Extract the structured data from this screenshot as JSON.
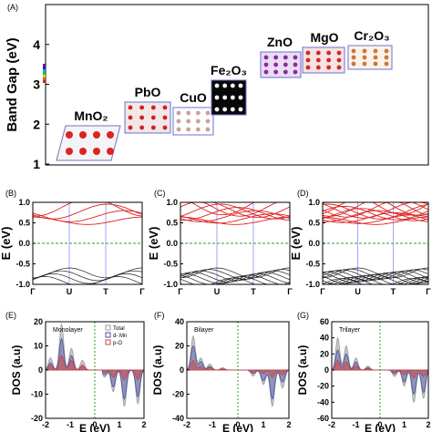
{
  "panel_labels": {
    "a": "(A)",
    "b": "(B)",
    "c": "(C)",
    "d": "(D)",
    "e": "(E)",
    "f": "(F)",
    "g": "(G)"
  },
  "colors": {
    "conduction": "#dd2222",
    "valence": "#222222",
    "fermi": "#2e9e2e",
    "kpath_line": "#8080ff",
    "dos_total": "#9a9a9a",
    "dos_mn": "#4a55a8",
    "dos_o": "#d04040"
  },
  "chart_data": [
    {
      "id": "bandgap",
      "type": "scatter",
      "title": "",
      "ylabel": "Band Gap (eV)",
      "xlabel": "",
      "ylim": [
        1,
        5
      ],
      "yticks": [
        "1",
        "2",
        "3",
        "4"
      ],
      "points": [
        {
          "label": "MnO₂",
          "y": 1.3
        },
        {
          "label": "PbO",
          "y": 1.9
        },
        {
          "label": "CuO",
          "y": 2.0
        },
        {
          "label": "Fe₂O₃",
          "y": 2.3
        },
        {
          "label": "ZnO",
          "y": 3.35
        },
        {
          "label": "MgO",
          "y": 3.6
        },
        {
          "label": "Cr₂O₃",
          "y": 3.6
        }
      ]
    },
    {
      "id": "bands_b",
      "type": "line",
      "ylabel": "E (eV)",
      "xticks": [
        "Γ",
        "U",
        "T",
        "Γ"
      ],
      "ylim": [
        -1,
        1
      ],
      "yticks": [
        "-1.0",
        "-0.5",
        "0.0",
        "0.5",
        "1.0"
      ],
      "layers": 1
    },
    {
      "id": "bands_c",
      "type": "line",
      "ylabel": "E (eV)",
      "xticks": [
        "Γ",
        "U",
        "T",
        "Γ"
      ],
      "ylim": [
        -1,
        1
      ],
      "yticks": [
        "-1.0",
        "-0.5",
        "0.0",
        "0.5",
        "1.0"
      ],
      "layers": 2
    },
    {
      "id": "bands_d",
      "type": "line",
      "ylabel": "E (eV)",
      "xticks": [
        "Γ",
        "U",
        "T",
        "Γ"
      ],
      "ylim": [
        -1,
        1
      ],
      "yticks": [
        "-1.0",
        "-0.5",
        "0.0",
        "0.5",
        "1.0"
      ],
      "layers": 3
    },
    {
      "id": "dos_e",
      "type": "area",
      "annotation": "Monolayer",
      "ylabel": "DOS (a.u)",
      "xlabel": "E (eV)",
      "xlim": [
        -2,
        2
      ],
      "xticks": [
        "-2",
        "-1",
        "0",
        "1",
        "2"
      ],
      "ylim": [
        -20,
        20
      ],
      "yticks": [
        "-20",
        "-10",
        "0",
        "10",
        "20"
      ],
      "legend": [
        "Total",
        "d- Mn",
        "p-O"
      ],
      "series": [
        {
          "name": "Total",
          "peaks": [
            [
              -1.8,
              5
            ],
            [
              -1.35,
              19
            ],
            [
              -0.95,
              9
            ],
            [
              -0.5,
              4
            ],
            [
              0.4,
              -3
            ],
            [
              0.75,
              -9
            ],
            [
              1.2,
              -15
            ],
            [
              1.75,
              -14
            ]
          ]
        },
        {
          "name": "d- Mn",
          "peaks": [
            [
              -1.8,
              3
            ],
            [
              -1.35,
              13
            ],
            [
              -0.95,
              6
            ],
            [
              -0.5,
              2
            ],
            [
              0.4,
              -2
            ],
            [
              0.75,
              -7
            ],
            [
              1.2,
              -12
            ],
            [
              1.75,
              -11
            ]
          ]
        },
        {
          "name": "p-O",
          "peaks": [
            [
              -1.8,
              2
            ],
            [
              -1.35,
              6
            ],
            [
              -0.95,
              4
            ],
            [
              -0.5,
              2
            ],
            [
              0.4,
              -1
            ],
            [
              0.75,
              -3
            ],
            [
              1.2,
              -4
            ],
            [
              1.75,
              -4
            ]
          ]
        }
      ]
    },
    {
      "id": "dos_f",
      "type": "area",
      "annotation": "Bilayer",
      "ylabel": "DOS (a.u)",
      "xlabel": "E (eV)",
      "xlim": [
        -2,
        2
      ],
      "xticks": [
        "-2",
        "-1",
        "0",
        "1",
        "2"
      ],
      "ylim": [
        -40,
        40
      ],
      "yticks": [
        "-40",
        "-20",
        "0",
        "20",
        "40"
      ],
      "series": [
        {
          "name": "Total",
          "peaks": [
            [
              -1.75,
              28
            ],
            [
              -1.45,
              10
            ],
            [
              -1.1,
              5
            ],
            [
              -0.6,
              2
            ],
            [
              0.6,
              -5
            ],
            [
              1.0,
              -12
            ],
            [
              1.35,
              -30
            ],
            [
              1.75,
              -15
            ]
          ]
        },
        {
          "name": "d- Mn",
          "peaks": [
            [
              -1.75,
              20
            ],
            [
              -1.45,
              7
            ],
            [
              -1.1,
              3
            ],
            [
              -0.6,
              1
            ],
            [
              0.6,
              -3
            ],
            [
              1.0,
              -9
            ],
            [
              1.35,
              -24
            ],
            [
              1.75,
              -10
            ]
          ]
        },
        {
          "name": "p-O",
          "peaks": [
            [
              -1.75,
              8
            ],
            [
              -1.45,
              3
            ],
            [
              -1.1,
              2
            ],
            [
              -0.6,
              1
            ],
            [
              0.6,
              -2
            ],
            [
              1.0,
              -3
            ],
            [
              1.35,
              -6
            ],
            [
              1.75,
              -4
            ]
          ]
        }
      ]
    },
    {
      "id": "dos_g",
      "type": "area",
      "annotation": "Trilayer",
      "ylabel": "DOS (a.u)",
      "xlabel": "E (eV)",
      "xlim": [
        -2,
        2
      ],
      "xticks": [
        "-2",
        "-1",
        "0",
        "1",
        "2"
      ],
      "ylim": [
        -60,
        60
      ],
      "yticks": [
        "-60",
        "-40",
        "-20",
        "0",
        "20",
        "40",
        "60"
      ],
      "series": [
        {
          "name": "Total",
          "peaks": [
            [
              -1.75,
              40
            ],
            [
              -1.4,
              30
            ],
            [
              -1.0,
              15
            ],
            [
              -0.5,
              5
            ],
            [
              0.6,
              -8
            ],
            [
              1.0,
              -20
            ],
            [
              1.4,
              -40
            ],
            [
              1.8,
              -35
            ]
          ]
        },
        {
          "name": "d- Mn",
          "peaks": [
            [
              -1.75,
              25
            ],
            [
              -1.4,
              20
            ],
            [
              -1.0,
              10
            ],
            [
              -0.5,
              3
            ],
            [
              0.6,
              -5
            ],
            [
              1.0,
              -15
            ],
            [
              1.4,
              -30
            ],
            [
              1.8,
              -28
            ]
          ]
        },
        {
          "name": "p-O",
          "peaks": [
            [
              -1.75,
              12
            ],
            [
              -1.4,
              10
            ],
            [
              -1.0,
              5
            ],
            [
              -0.5,
              2
            ],
            [
              0.6,
              -3
            ],
            [
              1.0,
              -6
            ],
            [
              1.4,
              -10
            ],
            [
              1.8,
              -8
            ]
          ]
        }
      ]
    }
  ]
}
